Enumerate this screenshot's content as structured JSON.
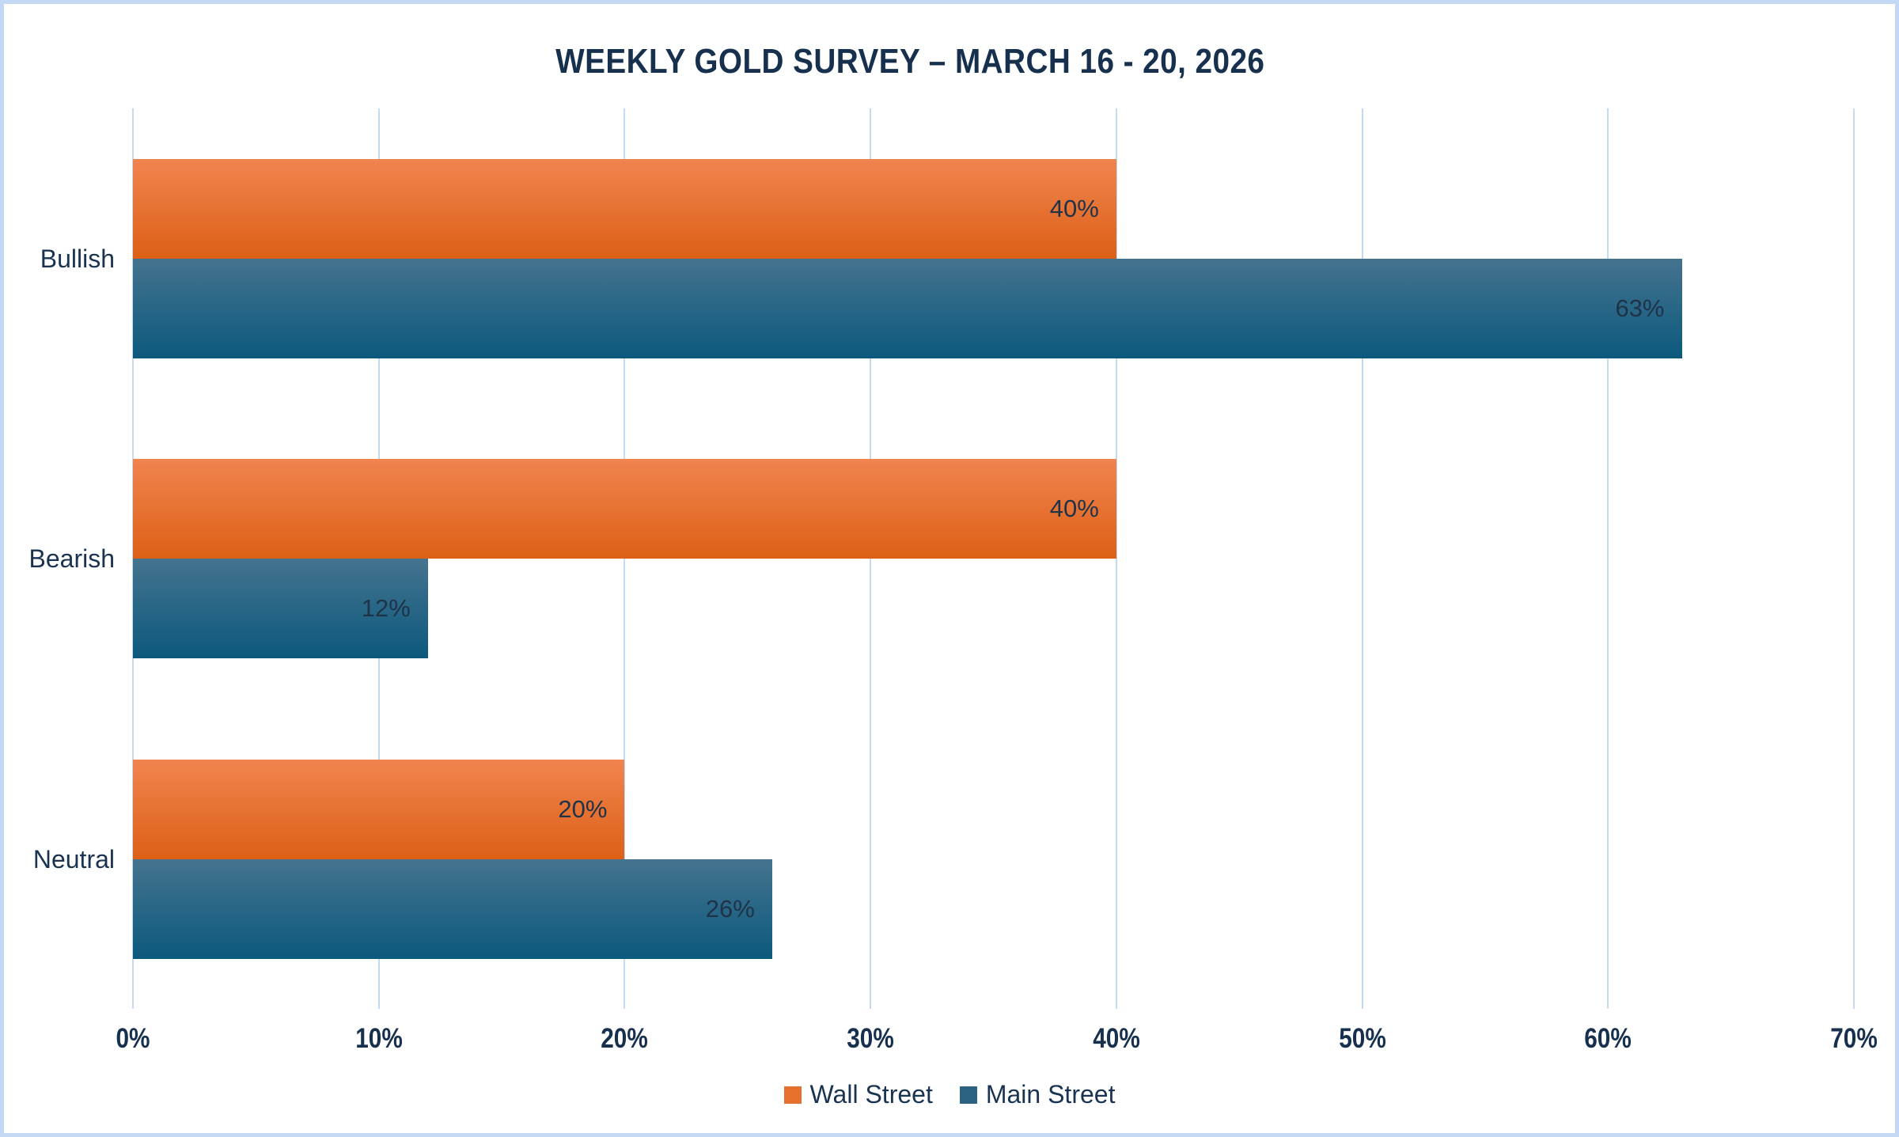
{
  "chart_data": {
    "type": "bar",
    "orientation": "horizontal",
    "title": "WEEKLY GOLD SURVEY – MARCH 16 - 20, 2026",
    "categories": [
      "Bullish",
      "Bearish",
      "Neutral"
    ],
    "series": [
      {
        "name": "Wall Street",
        "values": [
          40,
          40,
          20
        ],
        "swatch_color": "#E6712F",
        "gradient_top": "#F0844F",
        "gradient_bottom": "#DD6016"
      },
      {
        "name": "Main Street",
        "values": [
          63,
          12,
          26
        ],
        "swatch_color": "#2C6282",
        "gradient_top": "#44738F",
        "gradient_bottom": "#0C597D"
      }
    ],
    "data_labels": [
      [
        "40%",
        "40%",
        "20%"
      ],
      [
        "63%",
        "12%",
        "26%"
      ]
    ],
    "x_ticks": [
      "0%",
      "10%",
      "20%",
      "30%",
      "40%",
      "50%",
      "60%",
      "70%"
    ],
    "xlim": [
      0,
      70
    ],
    "xlabel": "",
    "ylabel": "",
    "grid": true,
    "legend_position": "bottom"
  },
  "colors": {
    "background": "#FFFFFF",
    "frame_border": "#C4D9F3",
    "gridline": "#C3DBF2",
    "title_text": "#16304E",
    "axis_text": "#1A3350",
    "data_label_text": "#1E3248"
  }
}
